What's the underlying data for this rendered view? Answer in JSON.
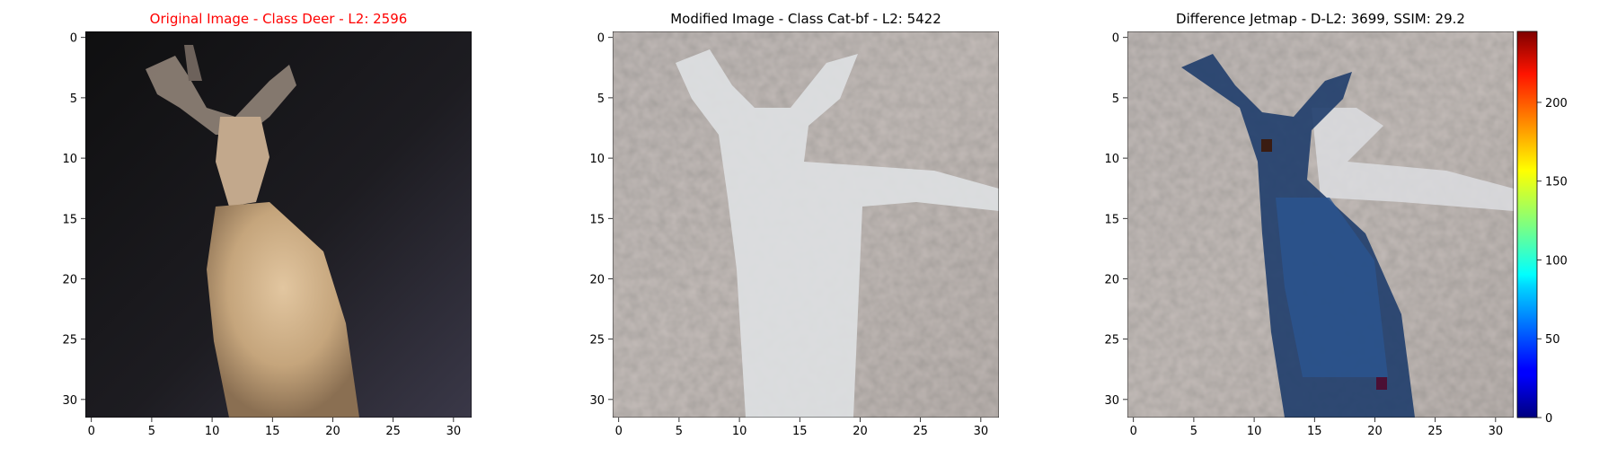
{
  "figure": {
    "panels": [
      {
        "id": "original",
        "title": "Original Image - Class Deer - L2: 2596",
        "title_color": "#ff0000",
        "image_subject": "pixelated deer photograph (32x32)"
      },
      {
        "id": "modified",
        "title": "Modified Image - Class Cat-bf - L2: 5422",
        "title_color": "#000000",
        "image_subject": "noisy adversarial version of the deer image"
      },
      {
        "id": "difference",
        "title": "Difference Jetmap - D-L2: 3699, SSIM: 29.2",
        "title_color": "#000000",
        "image_subject": "per-pixel difference overlaid with jet colormap"
      }
    ],
    "colorbar": {
      "colormap": "jet",
      "min": 0,
      "max": 245,
      "ticks": [
        "0",
        "50",
        "100",
        "150",
        "200"
      ],
      "tick_values": [
        0,
        50,
        100,
        150,
        200
      ]
    }
  },
  "chart_data": [
    {
      "type": "heatmap",
      "title": "Original Image - Class Deer - L2: 2596",
      "xlabel": "",
      "ylabel": "",
      "xlim": [
        -0.5,
        31.5
      ],
      "ylim": [
        31.5,
        -0.5
      ],
      "xticks": [
        "0",
        "5",
        "10",
        "15",
        "20",
        "25",
        "30"
      ],
      "yticks": [
        "0",
        "5",
        "10",
        "15",
        "20",
        "25",
        "30"
      ],
      "tick_values": [
        0,
        5,
        10,
        15,
        20,
        25,
        30
      ],
      "grid": false
    },
    {
      "type": "heatmap",
      "title": "Modified Image - Class Cat-bf - L2: 5422",
      "xlabel": "",
      "ylabel": "",
      "xlim": [
        -0.5,
        31.5
      ],
      "ylim": [
        31.5,
        -0.5
      ],
      "xticks": [
        "0",
        "5",
        "10",
        "15",
        "20",
        "25",
        "30"
      ],
      "yticks": [
        "0",
        "5",
        "10",
        "15",
        "20",
        "25",
        "30"
      ],
      "tick_values": [
        0,
        5,
        10,
        15,
        20,
        25,
        30
      ],
      "grid": false
    },
    {
      "type": "heatmap",
      "title": "Difference Jetmap - D-L2: 3699, SSIM: 29.2",
      "xlabel": "",
      "ylabel": "",
      "xlim": [
        -0.5,
        31.5
      ],
      "ylim": [
        31.5,
        -0.5
      ],
      "xticks": [
        "0",
        "5",
        "10",
        "15",
        "20",
        "25",
        "30"
      ],
      "yticks": [
        "0",
        "5",
        "10",
        "15",
        "20",
        "25",
        "30"
      ],
      "tick_values": [
        0,
        5,
        10,
        15,
        20,
        25,
        30
      ],
      "colorbar_range": [
        0,
        245
      ],
      "grid": false
    }
  ]
}
